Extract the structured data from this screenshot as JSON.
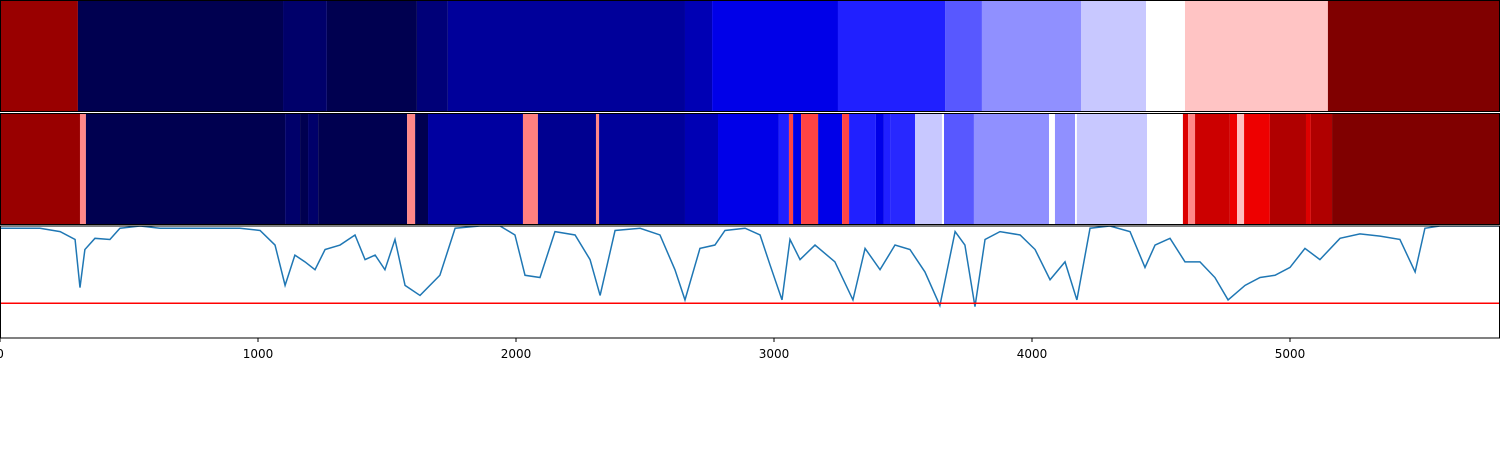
{
  "chart_data": [
    {
      "type": "segments",
      "xlim": [
        0,
        5814
      ],
      "starts": [
        0,
        302,
        1097,
        1267,
        1616,
        1736,
        2655,
        2760,
        3248,
        3663,
        3806,
        4190,
        4442,
        4593,
        5147
      ],
      "ends": [
        302,
        1097,
        1267,
        1616,
        1736,
        2655,
        2760,
        3248,
        3663,
        3806,
        4190,
        4442,
        4593,
        5147,
        5814
      ],
      "colors": [
        "#990000",
        "#000050",
        "#00006a",
        "#000050",
        "#000078",
        "#00009a",
        "#0000b4",
        "#0000e8",
        "#2020ff",
        "#5858ff",
        "#9090ff",
        "#c8c8ff",
        "#ffffff",
        "#ffc4c4",
        "#800000"
      ]
    },
    {
      "type": "segments",
      "xlim": [
        0,
        5814
      ],
      "starts": [
        0,
        310,
        333,
        1105,
        1163,
        1194,
        1233,
        1578,
        1609,
        1659,
        2027,
        2085,
        2310,
        2322,
        2655,
        2783,
        3019,
        3058,
        3074,
        3105,
        3171,
        3264,
        3291,
        3395,
        3426,
        3453,
        3547,
        3651,
        3659,
        3775,
        4066,
        4089,
        4167,
        4174,
        4446,
        4585,
        4605,
        4632,
        4767,
        4795,
        4822,
        4922,
        5062,
        5081,
        5163
      ],
      "ends": [
        310,
        333,
        1105,
        1163,
        1194,
        1233,
        1578,
        1609,
        1659,
        2027,
        2085,
        2310,
        2322,
        2655,
        2783,
        3019,
        3058,
        3074,
        3105,
        3171,
        3264,
        3291,
        3395,
        3426,
        3453,
        3547,
        3651,
        3659,
        3775,
        4066,
        4089,
        4167,
        4174,
        4446,
        4585,
        4605,
        4632,
        4767,
        4795,
        4822,
        4922,
        5062,
        5081,
        5163,
        5814
      ],
      "colors": [
        "#990000",
        "#ff8888",
        "#000050",
        "#00006a",
        "#000050",
        "#00006a",
        "#000050",
        "#ff8888",
        "#000050",
        "#0000a0",
        "#ff8080",
        "#000090",
        "#ff8888",
        "#00009a",
        "#0000b4",
        "#0000e8",
        "#2020ff",
        "#ff4444",
        "#0000e8",
        "#ff4444",
        "#0000e8",
        "#ff4444",
        "#2020ff",
        "#0000e8",
        "#2020ff",
        "#2828ff",
        "#c8c8ff",
        "#ffffff",
        "#5858ff",
        "#9090ff",
        "#ffffff",
        "#9090ff",
        "#ffffff",
        "#c8c8ff",
        "#ffffff",
        "#dd0000",
        "#ff8888",
        "#cc0000",
        "#ee0000",
        "#ffc0c0",
        "#ee0000",
        "#b00000",
        "#dd0000",
        "#b00000",
        "#800000"
      ]
    },
    {
      "type": "line",
      "xlim": [
        0,
        5814
      ],
      "ylim": [
        0,
        1
      ],
      "color": "#1f77b4",
      "xticks": [
        0,
        1000,
        2000,
        3000,
        4000,
        5000
      ],
      "threshold": 0.31,
      "threshold_color": "#ff0000",
      "x": [
        0,
        78,
        155,
        233,
        291,
        310,
        329,
        368,
        426,
        465,
        543,
        620,
        698,
        775,
        853,
        930,
        1008,
        1066,
        1105,
        1143,
        1182,
        1221,
        1260,
        1318,
        1376,
        1415,
        1454,
        1492,
        1531,
        1570,
        1628,
        1705,
        1764,
        1860,
        1938,
        1996,
        2035,
        2093,
        2151,
        2229,
        2287,
        2326,
        2384,
        2481,
        2558,
        2616,
        2655,
        2713,
        2771,
        2810,
        2888,
        2946,
        2985,
        3031,
        3062,
        3101,
        3159,
        3236,
        3306,
        3353,
        3411,
        3469,
        3527,
        3585,
        3643,
        3702,
        3740,
        3779,
        3818,
        3876,
        3954,
        4012,
        4070,
        4128,
        4174,
        4225,
        4302,
        4380,
        4438,
        4477,
        4535,
        4593,
        4651,
        4709,
        4760,
        4826,
        4884,
        4942,
        5000,
        5058,
        5116,
        5194,
        5271,
        5349,
        5426,
        5485,
        5523,
        5581,
        5814
      ],
      "values": [
        0.98,
        0.98,
        0.98,
        0.95,
        0.88,
        0.45,
        0.79,
        0.89,
        0.88,
        0.98,
        1.0,
        0.98,
        0.98,
        0.98,
        0.98,
        0.98,
        0.96,
        0.83,
        0.47,
        0.74,
        0.68,
        0.61,
        0.79,
        0.83,
        0.92,
        0.7,
        0.74,
        0.61,
        0.88,
        0.47,
        0.38,
        0.56,
        0.98,
        1.0,
        1.0,
        0.92,
        0.56,
        0.54,
        0.95,
        0.92,
        0.7,
        0.38,
        0.96,
        0.98,
        0.92,
        0.61,
        0.34,
        0.8,
        0.83,
        0.96,
        0.98,
        0.92,
        0.65,
        0.34,
        0.88,
        0.7,
        0.83,
        0.68,
        0.34,
        0.8,
        0.61,
        0.83,
        0.79,
        0.59,
        0.29,
        0.95,
        0.83,
        0.28,
        0.88,
        0.95,
        0.92,
        0.79,
        0.52,
        0.68,
        0.34,
        0.98,
        1.0,
        0.95,
        0.63,
        0.83,
        0.89,
        0.68,
        0.68,
        0.54,
        0.34,
        0.47,
        0.54,
        0.56,
        0.63,
        0.8,
        0.7,
        0.89,
        0.93,
        0.91,
        0.88,
        0.59,
        0.98,
        1.0,
        1.0
      ]
    }
  ]
}
